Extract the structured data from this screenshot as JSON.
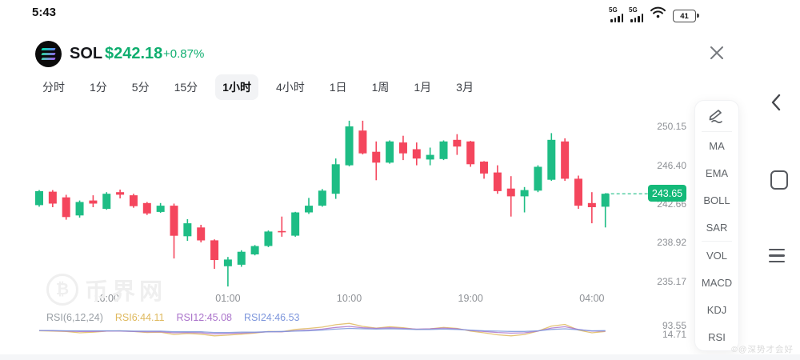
{
  "status_bar": {
    "time": "5:43",
    "battery_level": "41",
    "network_badge": "5G"
  },
  "header": {
    "symbol": "SOL",
    "price": "$242.18",
    "change": "+0.87%"
  },
  "tabs": {
    "items": [
      "分时",
      "1分",
      "5分",
      "15分",
      "1小时",
      "4小时",
      "1日",
      "1周",
      "1月",
      "3月"
    ],
    "selected_index": 4
  },
  "indicator_panel": {
    "items": [
      "MA",
      "EMA",
      "BOLL",
      "SAR",
      "VOL",
      "MACD",
      "KDJ",
      "RSI"
    ]
  },
  "watermarks": {
    "site_logo_letter": "₿",
    "site_name": "币界网",
    "bottom_right": "©@深势才会好"
  },
  "chart_data": {
    "type": "candlestick",
    "interval": "1小时",
    "y_axis_labels": [
      "250.15",
      "246.40",
      "242.66",
      "238.92",
      "235.17"
    ],
    "rsi_scale_labels": [
      "93.55",
      "14.71"
    ],
    "x_axis_labels": [
      "16:00",
      "01:00",
      "10:00",
      "19:00",
      "04:00"
    ],
    "x_label_indices": [
      5,
      14,
      23,
      32,
      41
    ],
    "current_price": "243.65",
    "colors": {
      "up": "#1ebd85",
      "down": "#f4465d",
      "price_badge": "#14b979",
      "rsi6": "#dfb95e",
      "rsi12": "#ab74cb",
      "rsi24": "#7d96dc"
    },
    "rsi_legend": {
      "title": "RSI(6,12,24)",
      "rsi6": "RSI6:44.11",
      "rsi12": "RSI12:45.08",
      "rsi24": "RSI24:46.53"
    },
    "candles": [
      [
        242.55,
        244.0,
        242.4,
        243.9
      ],
      [
        243.85,
        244.0,
        242.35,
        242.7
      ],
      [
        243.3,
        243.55,
        241.15,
        241.4
      ],
      [
        241.55,
        243.0,
        241.35,
        242.85
      ],
      [
        243.0,
        243.5,
        242.35,
        242.7
      ],
      [
        242.2,
        243.8,
        242.1,
        243.65
      ],
      [
        243.8,
        244.05,
        243.2,
        243.55
      ],
      [
        243.5,
        243.65,
        242.3,
        242.45
      ],
      [
        242.75,
        242.85,
        241.6,
        241.75
      ],
      [
        241.9,
        242.75,
        241.8,
        242.5
      ],
      [
        242.5,
        242.7,
        237.4,
        239.6
      ],
      [
        239.55,
        241.2,
        239.1,
        240.8
      ],
      [
        240.4,
        240.65,
        238.95,
        239.15
      ],
      [
        239.15,
        239.25,
        236.4,
        237.25
      ],
      [
        236.65,
        237.55,
        234.7,
        237.3
      ],
      [
        236.8,
        238.2,
        236.6,
        238.05
      ],
      [
        237.8,
        238.7,
        237.7,
        238.6
      ],
      [
        238.6,
        240.1,
        238.5,
        240.0
      ],
      [
        240.05,
        241.45,
        239.5,
        239.95
      ],
      [
        239.6,
        241.9,
        239.5,
        241.85
      ],
      [
        241.85,
        243.25,
        241.7,
        242.5
      ],
      [
        242.5,
        244.1,
        242.4,
        243.95
      ],
      [
        243.65,
        247.05,
        243.15,
        246.5
      ],
      [
        246.4,
        250.7,
        246.3,
        250.15
      ],
      [
        249.75,
        250.7,
        247.45,
        247.55
      ],
      [
        247.7,
        248.7,
        244.95,
        246.65
      ],
      [
        246.65,
        248.8,
        246.55,
        248.7
      ],
      [
        248.6,
        249.25,
        246.9,
        247.55
      ],
      [
        247.95,
        248.6,
        246.4,
        247.05
      ],
      [
        246.95,
        248.1,
        246.4,
        247.4
      ],
      [
        247.0,
        248.8,
        246.9,
        248.7
      ],
      [
        248.85,
        249.4,
        247.4,
        248.2
      ],
      [
        248.7,
        248.75,
        246.25,
        246.5
      ],
      [
        246.75,
        246.8,
        245.1,
        245.6
      ],
      [
        245.7,
        246.4,
        243.65,
        243.9
      ],
      [
        244.15,
        245.35,
        241.45,
        243.4
      ],
      [
        243.4,
        244.3,
        241.85,
        244.0
      ],
      [
        243.95,
        246.4,
        243.8,
        246.25
      ],
      [
        245.0,
        249.5,
        244.9,
        248.85
      ],
      [
        248.7,
        249.0,
        244.9,
        245.1
      ],
      [
        245.1,
        245.4,
        242.2,
        242.5
      ],
      [
        242.75,
        243.8,
        240.8,
        242.35
      ],
      [
        242.4,
        243.7,
        240.4,
        243.65
      ]
    ],
    "rsi6": [
      46,
      45,
      44,
      40,
      42,
      45,
      46,
      44,
      41,
      42,
      35,
      38,
      36,
      31,
      33,
      36,
      39,
      44,
      43,
      50,
      53,
      57,
      64,
      68,
      59,
      54,
      58,
      55,
      50,
      52,
      56,
      53,
      45,
      40,
      34,
      31,
      35,
      45,
      60,
      65,
      48,
      40,
      44.11
    ],
    "rsi12": [
      47,
      46,
      45,
      44,
      44,
      45,
      45,
      44,
      43,
      43,
      40,
      41,
      40,
      37,
      38,
      39,
      41,
      43,
      43,
      46,
      48,
      51,
      56,
      59,
      55,
      53,
      55,
      53,
      51,
      52,
      54,
      52,
      47,
      44,
      41,
      39,
      40,
      45,
      54,
      58,
      50,
      45,
      45.08
    ],
    "rsi24": [
      47,
      47,
      46,
      46,
      46,
      46,
      46,
      45,
      45,
      45,
      43,
      43,
      43,
      41,
      41,
      42,
      42,
      43,
      44,
      45,
      46,
      48,
      51,
      53,
      52,
      51,
      52,
      51,
      50,
      50,
      51,
      50,
      48,
      46,
      45,
      44,
      44,
      46,
      50,
      52,
      49,
      46,
      46.53
    ]
  }
}
